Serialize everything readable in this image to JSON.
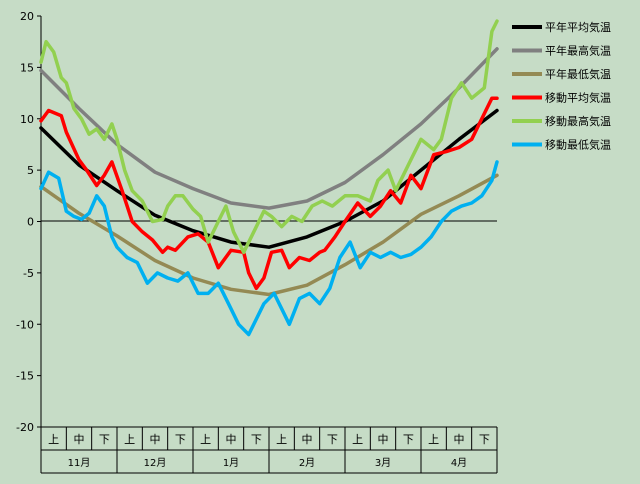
{
  "chart_data": {
    "type": "line",
    "ylim": [
      -20,
      20
    ],
    "yticks": [
      -20,
      -15,
      -10,
      -5,
      0,
      5,
      10,
      15,
      20
    ],
    "x_range": [
      0,
      180
    ],
    "grid": false,
    "legend_position": "right",
    "months": [
      "11月",
      "12月",
      "1月",
      "2月",
      "3月",
      "4月"
    ],
    "periods": [
      "上",
      "中",
      "下"
    ],
    "background_color": "#c6dcc6",
    "series": [
      {
        "name": "平年平均気温",
        "color": "#000000",
        "x": [
          0,
          15,
          30,
          45,
          60,
          75,
          90,
          105,
          120,
          135,
          150,
          165,
          180
        ],
        "y": [
          9.1,
          5.5,
          3.0,
          0.6,
          -0.9,
          -2.0,
          -2.5,
          -1.5,
          0.0,
          2.0,
          5.0,
          8.0,
          10.8
        ]
      },
      {
        "name": "平年最高気温",
        "color": "#808080",
        "x": [
          0,
          15,
          30,
          45,
          60,
          75,
          90,
          105,
          120,
          135,
          150,
          165,
          180
        ],
        "y": [
          14.7,
          11.0,
          7.5,
          4.8,
          3.2,
          1.8,
          1.3,
          2.0,
          3.8,
          6.5,
          9.5,
          13.0,
          16.8
        ]
      },
      {
        "name": "平年最低気温",
        "color": "#948a54",
        "x": [
          0,
          15,
          30,
          45,
          60,
          75,
          90,
          105,
          120,
          135,
          150,
          165,
          180
        ],
        "y": [
          3.4,
          0.8,
          -1.4,
          -3.8,
          -5.5,
          -6.6,
          -7.1,
          -6.2,
          -4.2,
          -2.0,
          0.7,
          2.5,
          4.5
        ]
      },
      {
        "name": "移動平均気温",
        "color": "#ff0000",
        "x": [
          0,
          3,
          8,
          10,
          15,
          18,
          22,
          25,
          28,
          32,
          36,
          40,
          44,
          48,
          50,
          53,
          58,
          62,
          66,
          70,
          75,
          80,
          82,
          85,
          88,
          91,
          95,
          98,
          102,
          106,
          110,
          112,
          116,
          120,
          125,
          130,
          134,
          138,
          142,
          146,
          150,
          155,
          160,
          165,
          170,
          175,
          178,
          180
        ],
        "y": [
          9.8,
          10.8,
          10.3,
          8.7,
          6.0,
          5.0,
          3.5,
          4.5,
          5.8,
          3.0,
          0.0,
          -1.0,
          -1.8,
          -3.0,
          -2.5,
          -2.8,
          -1.5,
          -1.2,
          -2.0,
          -4.5,
          -2.8,
          -3.0,
          -5.0,
          -6.5,
          -5.5,
          -3.0,
          -2.8,
          -4.5,
          -3.5,
          -3.8,
          -3.0,
          -2.8,
          -1.5,
          0.0,
          1.8,
          0.5,
          1.5,
          3.0,
          1.8,
          4.5,
          3.2,
          6.5,
          6.8,
          7.2,
          8.0,
          10.5,
          12.0,
          12.0
        ]
      },
      {
        "name": "移動最高気温",
        "color": "#92d050",
        "x": [
          0,
          2,
          5,
          8,
          10,
          13,
          16,
          19,
          22,
          25,
          28,
          30,
          33,
          36,
          40,
          44,
          48,
          50,
          53,
          56,
          60,
          63,
          66,
          70,
          73,
          76,
          80,
          84,
          88,
          91,
          95,
          99,
          103,
          107,
          111,
          115,
          120,
          125,
          130,
          133,
          137,
          140,
          145,
          150,
          155,
          158,
          162,
          166,
          170,
          175,
          178,
          180
        ],
        "y": [
          15.5,
          17.5,
          16.5,
          14.0,
          13.5,
          11.0,
          10.0,
          8.5,
          9.0,
          8.0,
          9.5,
          8.0,
          5.0,
          3.0,
          2.0,
          0.0,
          0.2,
          1.5,
          2.5,
          2.5,
          1.2,
          0.5,
          -2.0,
          0.0,
          1.5,
          -1.0,
          -3.0,
          -1.0,
          1.0,
          0.5,
          -0.5,
          0.5,
          0.0,
          1.5,
          2.0,
          1.5,
          2.5,
          2.5,
          2.0,
          4.0,
          5.0,
          3.0,
          5.5,
          8.0,
          7.0,
          8.0,
          12.0,
          13.5,
          12.0,
          13.0,
          18.5,
          19.5
        ]
      },
      {
        "name": "移動最低気温",
        "color": "#00b0f0",
        "x": [
          0,
          3,
          7,
          10,
          13,
          16,
          19,
          22,
          25,
          28,
          30,
          34,
          38,
          42,
          46,
          50,
          54,
          58,
          62,
          66,
          70,
          74,
          78,
          82,
          85,
          88,
          92,
          95,
          98,
          102,
          106,
          110,
          114,
          118,
          122,
          126,
          130,
          134,
          138,
          142,
          146,
          150,
          154,
          158,
          162,
          166,
          170,
          174,
          178,
          180
        ],
        "y": [
          3.2,
          4.8,
          4.2,
          1.0,
          0.5,
          0.2,
          0.8,
          2.5,
          1.5,
          -1.5,
          -2.5,
          -3.5,
          -4.0,
          -6.0,
          -5.0,
          -5.5,
          -5.8,
          -5.0,
          -7.0,
          -7.0,
          -6.0,
          -8.0,
          -10.0,
          -11.0,
          -9.5,
          -8.0,
          -7.0,
          -8.5,
          -10.0,
          -7.5,
          -7.0,
          -8.0,
          -6.5,
          -3.5,
          -2.0,
          -4.5,
          -3.0,
          -3.5,
          -3.0,
          -3.5,
          -3.2,
          -2.5,
          -1.5,
          0.0,
          1.0,
          1.5,
          1.8,
          2.5,
          4.0,
          5.8
        ]
      }
    ]
  }
}
